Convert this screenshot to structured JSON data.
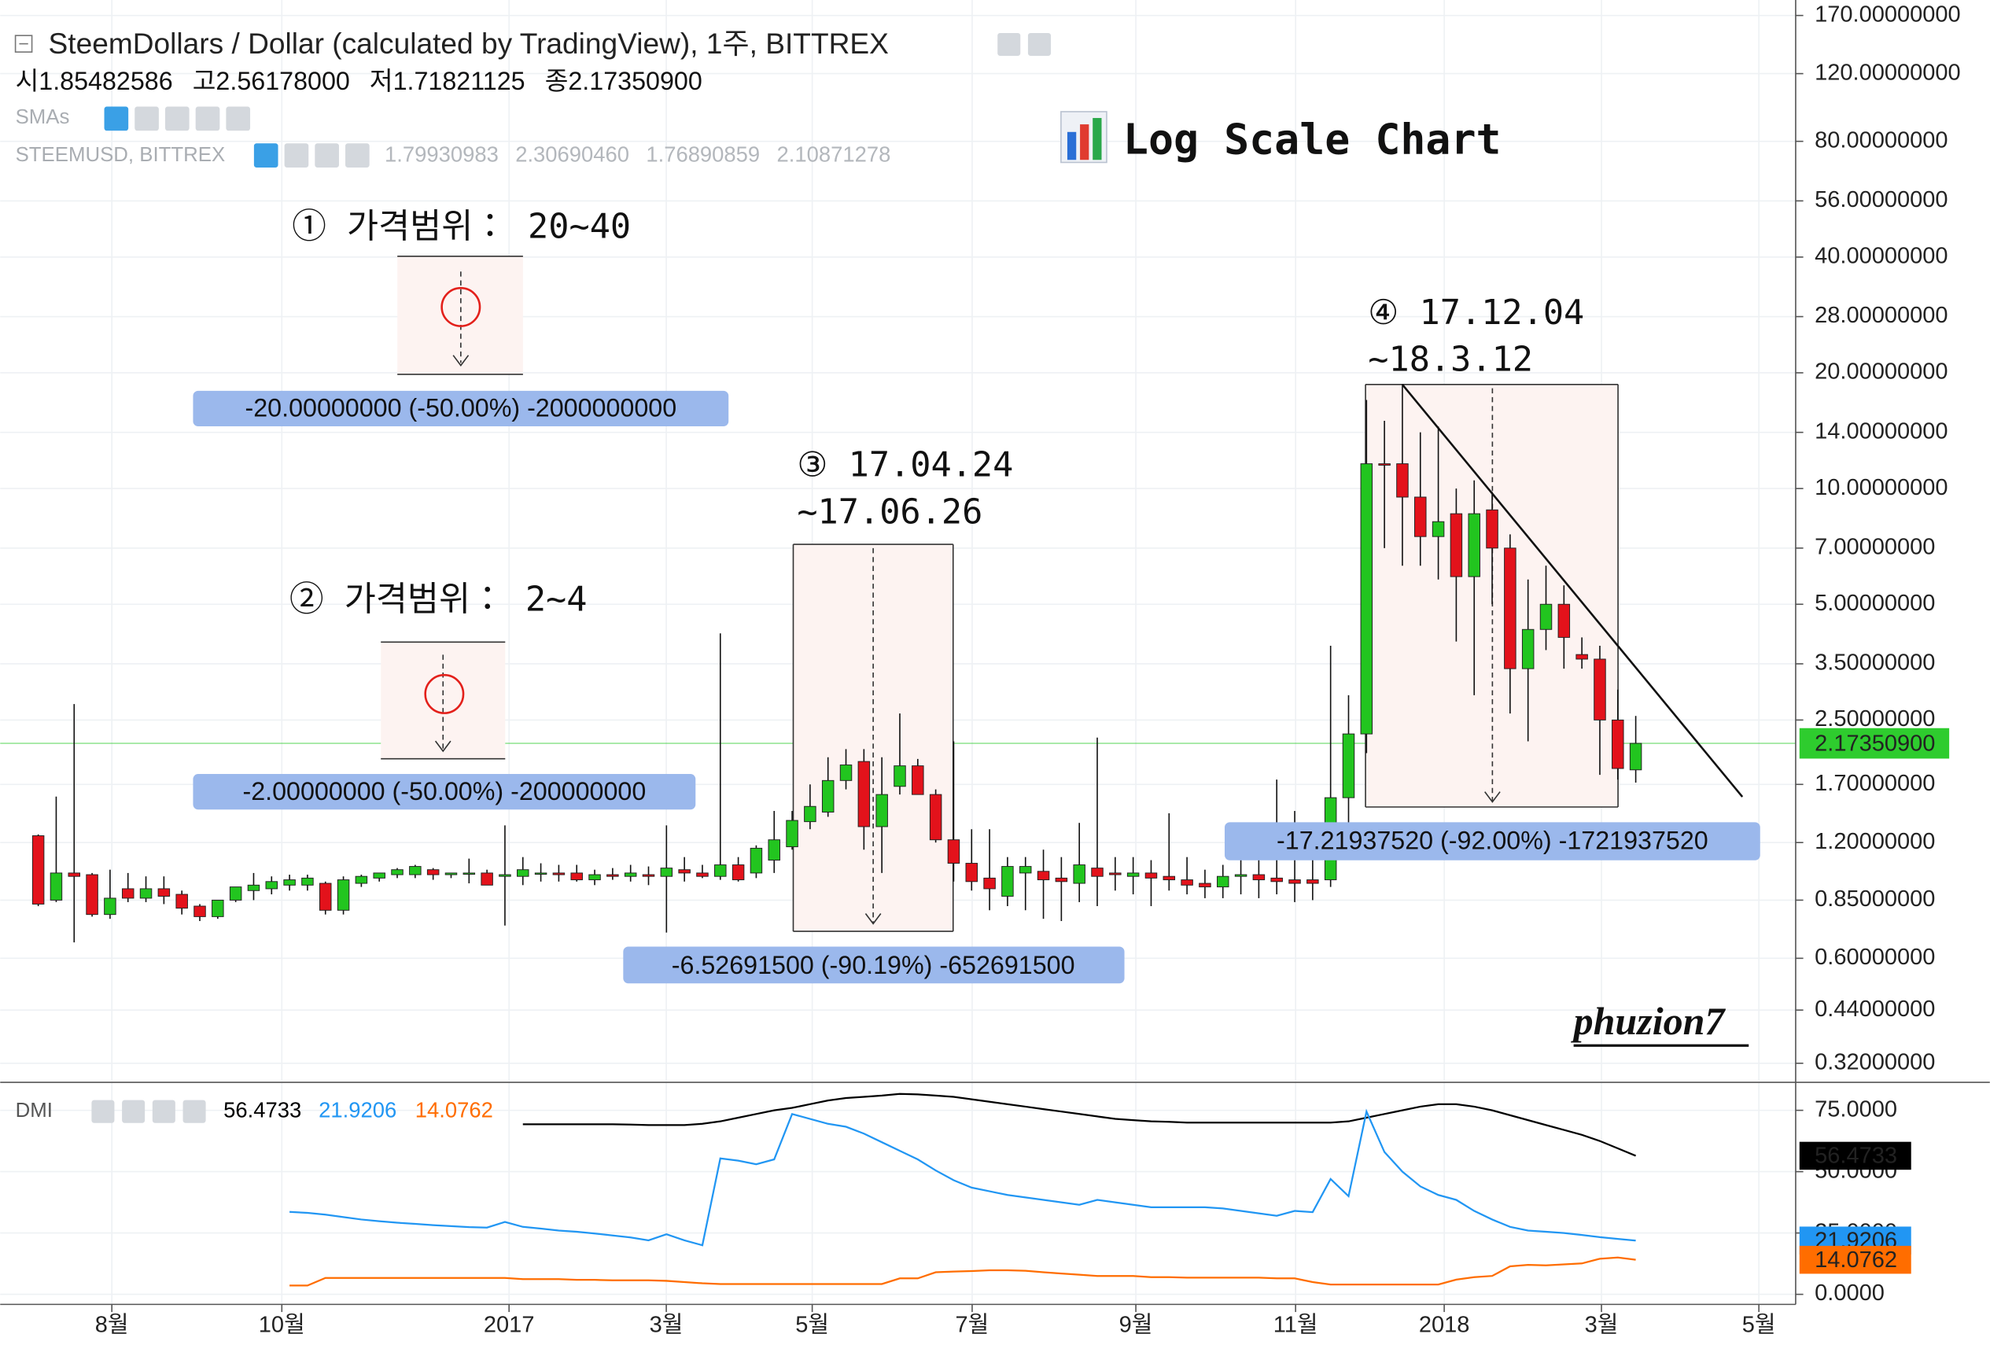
{
  "header": {
    "title": "SteemDollars / Dollar (calculated by TradingView), 1주, BITTREX",
    "ohlc": [
      {
        "label": "시",
        "value": "1.85482586"
      },
      {
        "label": "고",
        "value": "2.56178000"
      },
      {
        "label": "저",
        "value": "1.71821125"
      },
      {
        "label": "종",
        "value": "2.17350900"
      }
    ],
    "sma_label": "SMAs",
    "symbol": "STEEMUSD, BITTREX",
    "symbol_values": [
      "1.79930983",
      "2.30690460",
      "1.76890859",
      "2.10871278"
    ]
  },
  "annotations": [
    {
      "label": "① 가격범위： 20~40",
      "measure": "-20.00000000 (-50.00%) -2000000000"
    },
    {
      "label": "② 가격범위： 2~4",
      "measure": "-2.00000000 (-50.00%) -200000000"
    },
    {
      "label": "③ 17.04.24",
      "label2": "~17.06.26",
      "measure": "-6.52691500 (-90.19%) -652691500"
    },
    {
      "label": "④ 17.12.04",
      "label2": "~18.3.12",
      "measure": "-17.21937520 (-92.00%) -1721937520"
    }
  ],
  "signature": "phuzion7",
  "chart_data": [
    {
      "type": "candlestick",
      "title": "Log Scale Chart",
      "log_scale": true,
      "grid": true,
      "up_color": "#22c51f",
      "down_color": "#e3121b",
      "ylim": [
        0.2876,
        186.5
      ],
      "yticks": [
        {
          "value": 170,
          "label": "170.00000000"
        },
        {
          "value": 120,
          "label": "120.00000000"
        },
        {
          "value": 80,
          "label": "80.00000000"
        },
        {
          "value": 56,
          "label": "56.00000000"
        },
        {
          "value": 40,
          "label": "40.00000000"
        },
        {
          "value": 28,
          "label": "28.00000000"
        },
        {
          "value": 20,
          "label": "20.00000000"
        },
        {
          "value": 14,
          "label": "14.00000000"
        },
        {
          "value": 10,
          "label": "10.00000000"
        },
        {
          "value": 7,
          "label": "7.00000000"
        },
        {
          "value": 5,
          "label": "5.00000000"
        },
        {
          "value": 3.5,
          "label": "3.50000000"
        },
        {
          "value": 2.5,
          "label": "2.50000000"
        },
        {
          "value": 1.7,
          "label": "1.70000000"
        },
        {
          "value": 1.2,
          "label": "1.20000000"
        },
        {
          "value": 0.85,
          "label": "0.85000000"
        },
        {
          "value": 0.6,
          "label": "0.60000000"
        },
        {
          "value": 0.44,
          "label": "0.44000000"
        },
        {
          "value": 0.32,
          "label": "0.32000000"
        }
      ],
      "xlim": [
        -2.12,
        97.91
      ],
      "xticks": [
        {
          "value": 4.1,
          "label": "8월"
        },
        {
          "value": 13.57,
          "label": "10월"
        },
        {
          "value": 26.23,
          "label": "2017"
        },
        {
          "value": 34.99,
          "label": "3월"
        },
        {
          "value": 43.12,
          "label": "5월"
        },
        {
          "value": 52.03,
          "label": "7월"
        },
        {
          "value": 61.15,
          "label": "9월"
        },
        {
          "value": 70.05,
          "label": "11월"
        },
        {
          "value": 78.33,
          "label": "2018"
        },
        {
          "value": 87.09,
          "label": "3월"
        },
        {
          "value": 95.86,
          "label": "5월"
        }
      ],
      "price_line": {
        "value": 2.173509,
        "label": "2.17350900",
        "color": "#2ecc2e"
      },
      "open": [
        1.25,
        0.85,
        1.0,
        0.99,
        0.78,
        0.91,
        0.86,
        0.91,
        0.88,
        0.82,
        0.77,
        0.85,
        0.9,
        0.91,
        0.93,
        0.93,
        0.94,
        0.8,
        0.94,
        0.97,
        0.99,
        0.99,
        1.02,
        0.99,
        1.0,
        1.0,
        0.98,
        0.98,
        1.0,
        1.0,
        1.0,
        0.96,
        0.99,
        0.98,
        0.99,
        0.98,
        1.02,
        1.0,
        0.98,
        1.05,
        1.0,
        1.08,
        1.17,
        1.36,
        1.44,
        1.74,
        1.95,
        1.32,
        1.68,
        1.9,
        1.6,
        1.22,
        1.06,
        0.97,
        0.87,
        1.0,
        1.01,
        0.97,
        0.94,
        1.03,
        1.0,
        0.98,
        1.0,
        0.98,
        0.96,
        0.94,
        0.92,
        0.98,
        0.99,
        0.97,
        0.96,
        0.96,
        0.96,
        1.57,
        2.3,
        11.6,
        11.6,
        9.5,
        7.5,
        8.6,
        5.9,
        8.8,
        7.0,
        3.4,
        4.3,
        5.0,
        3.7,
        3.6,
        2.5,
        1.85482586
      ],
      "high": [
        1.26,
        1.58,
        2.75,
        1.0,
        1.02,
        1.0,
        0.98,
        0.98,
        0.9,
        0.83,
        0.83,
        0.92,
        1.0,
        0.98,
        0.99,
        0.99,
        0.95,
        0.98,
        0.99,
        1.0,
        1.03,
        1.05,
        1.03,
        1.0,
        1.09,
        1.02,
        1.33,
        1.1,
        1.06,
        1.05,
        1.05,
        1.02,
        1.03,
        1.05,
        1.04,
        1.33,
        1.1,
        1.05,
        4.2,
        1.1,
        1.18,
        1.45,
        1.45,
        1.7,
        2.0,
        2.1,
        2.1,
        2.0,
        2.6,
        1.98,
        1.65,
        2.2,
        1.3,
        1.3,
        1.1,
        1.1,
        1.15,
        1.1,
        1.35,
        2.25,
        1.1,
        1.1,
        1.08,
        1.43,
        1.1,
        1.02,
        1.05,
        1.08,
        1.08,
        1.75,
        1.45,
        1.3,
        3.9,
        2.9,
        17.0,
        15.0,
        18.5,
        14.0,
        14.5,
        10.0,
        10.5,
        9.8,
        7.6,
        5.8,
        6.3,
        5.6,
        4.1,
        3.9,
        3.0,
        2.56178
      ],
      "low": [
        0.82,
        0.84,
        0.66,
        0.77,
        0.76,
        0.84,
        0.84,
        0.83,
        0.78,
        0.75,
        0.76,
        0.84,
        0.85,
        0.88,
        0.9,
        0.9,
        0.78,
        0.78,
        0.92,
        0.95,
        0.97,
        0.97,
        0.96,
        0.97,
        0.94,
        0.93,
        0.73,
        0.93,
        0.95,
        0.95,
        0.95,
        0.93,
        0.96,
        0.95,
        0.93,
        0.7,
        0.95,
        0.97,
        0.96,
        0.95,
        0.97,
        1.0,
        1.15,
        1.3,
        1.4,
        1.65,
        1.15,
        1.0,
        1.6,
        1.6,
        1.2,
        0.95,
        0.9,
        0.8,
        0.82,
        0.8,
        0.76,
        0.75,
        0.84,
        0.82,
        0.9,
        0.88,
        0.82,
        0.9,
        0.88,
        0.86,
        0.86,
        0.88,
        0.86,
        0.88,
        0.84,
        0.85,
        0.92,
        1.35,
        2.05,
        7.0,
        6.3,
        6.3,
        5.8,
        4.0,
        2.9,
        5.0,
        2.6,
        2.2,
        3.8,
        3.4,
        3.4,
        1.8,
        1.75,
        1.71821125
      ],
      "close": [
        0.83,
        1.0,
        0.98,
        0.78,
        0.86,
        0.86,
        0.91,
        0.87,
        0.81,
        0.77,
        0.85,
        0.92,
        0.93,
        0.95,
        0.96,
        0.97,
        0.8,
        0.96,
        0.98,
        1.0,
        1.02,
        1.04,
        0.99,
        1.0,
        1.0,
        0.93,
        0.99,
        1.02,
        1.0,
        0.99,
        0.96,
        0.99,
        0.98,
        1.0,
        0.98,
        1.03,
        1.0,
        0.98,
        1.05,
        0.96,
        1.16,
        1.22,
        1.37,
        1.49,
        1.74,
        1.91,
        1.32,
        1.6,
        1.9,
        1.6,
        1.22,
        1.06,
        0.95,
        0.91,
        1.04,
        1.04,
        0.96,
        0.95,
        1.05,
        0.98,
        0.99,
        1.0,
        0.97,
        0.96,
        0.93,
        0.92,
        0.98,
        0.99,
        0.96,
        0.95,
        0.94,
        0.94,
        1.57,
        2.3,
        11.6,
        11.5,
        9.5,
        7.5,
        8.2,
        5.9,
        8.6,
        7.0,
        3.4,
        4.3,
        5.0,
        4.1,
        3.6,
        2.5,
        1.87,
        2.173509
      ]
    },
    {
      "type": "line",
      "title": "DMI",
      "grid": true,
      "ylim": [
        -4.1,
        86.4
      ],
      "yticks": [
        {
          "value": 0,
          "label": "0.0000"
        },
        {
          "value": 25,
          "label": "25.0000"
        },
        {
          "value": 50,
          "label": "50.0000"
        },
        {
          "value": 75,
          "label": "75.0000"
        }
      ],
      "series": [
        {
          "color": "#000000",
          "values": [
            null,
            null,
            null,
            null,
            null,
            null,
            null,
            null,
            null,
            null,
            null,
            null,
            null,
            null,
            null,
            null,
            null,
            null,
            null,
            null,
            null,
            null,
            null,
            null,
            null,
            null,
            null,
            69.3,
            69.3,
            69.3,
            69.3,
            69.3,
            69.3,
            69.2,
            69.0,
            69.0,
            69.0,
            69.5,
            70.5,
            72,
            73.5,
            75,
            76,
            77.5,
            79,
            80,
            80.5,
            81,
            81.7,
            81.5,
            81,
            80.5,
            79.5,
            78.5,
            77.5,
            76.5,
            75.5,
            74.5,
            73.5,
            72.5,
            71.5,
            71,
            70.5,
            70.3,
            70,
            70,
            70,
            70,
            70,
            70,
            70,
            70,
            70,
            70.5,
            72,
            73.5,
            75,
            76.5,
            77.5,
            77.5,
            76.5,
            75,
            73,
            71,
            69,
            67,
            65,
            62.5,
            59.5,
            56.4733
          ]
        },
        {
          "color": "#2196f3",
          "values": [
            null,
            null,
            null,
            null,
            null,
            null,
            null,
            null,
            null,
            null,
            null,
            null,
            null,
            null,
            33.6,
            33.2,
            32.5,
            31.5,
            30.5,
            29.8,
            29.2,
            28.7,
            28.2,
            27.8,
            27.4,
            27.2,
            29.5,
            27.5,
            26.8,
            26.0,
            25.5,
            24.8,
            24.0,
            23.2,
            22.0,
            24.5,
            22.0,
            20.0,
            55.4,
            54.5,
            53,
            55,
            73.5,
            71.5,
            69.5,
            68.3,
            65.5,
            62,
            58.5,
            55,
            50.5,
            46.5,
            43.5,
            42,
            40.5,
            39.5,
            38.5,
            37.5,
            36.5,
            38.5,
            37.5,
            36.5,
            35.5,
            35.5,
            35.5,
            35.5,
            35,
            34,
            33,
            32,
            34,
            33.5,
            47,
            40,
            74.5,
            58,
            50,
            44,
            40.5,
            38.5,
            34,
            30.5,
            27.5,
            26,
            25.5,
            25,
            24.2,
            23.3,
            22.6,
            21.9206
          ]
        },
        {
          "color": "#ff6d00",
          "values": [
            null,
            null,
            null,
            null,
            null,
            null,
            null,
            null,
            null,
            null,
            null,
            null,
            null,
            null,
            3.6,
            3.6,
            6.7,
            6.7,
            6.7,
            6.7,
            6.7,
            6.7,
            6.7,
            6.7,
            6.7,
            6.7,
            6.7,
            6.2,
            6.2,
            6.2,
            5.9,
            5.9,
            5.7,
            5.7,
            5.7,
            5.5,
            5.0,
            4.5,
            4.2,
            4.2,
            4.2,
            4.2,
            4.2,
            4.2,
            4.2,
            4.2,
            4.2,
            4.2,
            6.5,
            6.5,
            9.0,
            9.3,
            9.5,
            9.8,
            9.8,
            9.6,
            9.0,
            8.5,
            8.0,
            7.5,
            7.5,
            7.5,
            7.0,
            7.0,
            6.8,
            6.8,
            6.8,
            6.8,
            6.8,
            6.5,
            6.5,
            5.0,
            4.0,
            4.0,
            4.0,
            4.0,
            4.0,
            4.0,
            4.0,
            6.0,
            7.0,
            7.5,
            11.4,
            12.0,
            11.8,
            12.2,
            12.6,
            14.5,
            15.0,
            14.0762
          ]
        }
      ]
    }
  ]
}
